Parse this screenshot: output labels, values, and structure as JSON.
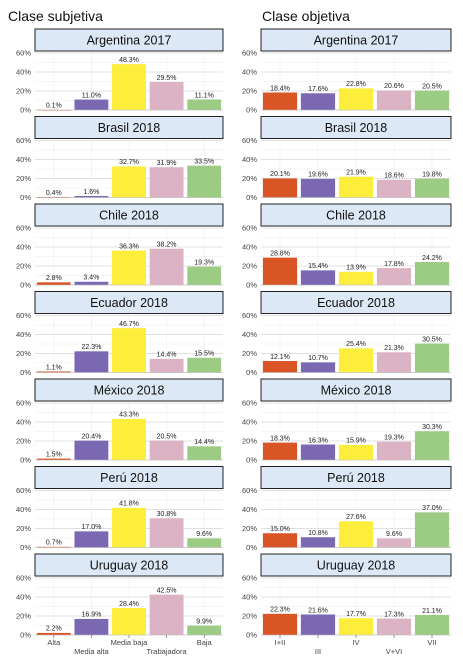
{
  "left_title": "Clase subjetiva",
  "right_title": "Clase objetiva",
  "colors": [
    "#d95525",
    "#7b68b2",
    "#fdee3b",
    "#dcb3c4",
    "#9ccb84"
  ],
  "chart_data": [
    {
      "type": "bar",
      "facet": "Clase subjetiva",
      "categories": [
        "Alta",
        "Media alta",
        "Media baja",
        "Trabajadora",
        "Baja"
      ],
      "ylim": [
        0,
        60
      ],
      "yticks": [
        "0%",
        "20%",
        "40%",
        "60%"
      ],
      "grid": true,
      "panels": [
        {
          "title": "Argentina 2017",
          "values": [
            0.1,
            11.0,
            48.3,
            29.5,
            11.1
          ],
          "labels": [
            "0.1%",
            "11.0%",
            "48.3%",
            "29.5%",
            "11.1%"
          ]
        },
        {
          "title": "Brasil 2018",
          "values": [
            0.4,
            1.6,
            32.7,
            31.9,
            33.5
          ],
          "labels": [
            "0.4%",
            "1.6%",
            "32.7%",
            "31.9%",
            "33.5%"
          ]
        },
        {
          "title": "Chile 2018",
          "values": [
            2.8,
            3.4,
            36.3,
            38.2,
            19.3
          ],
          "labels": [
            "2.8%",
            "3.4%",
            "36.3%",
            "38.2%",
            "19.3%"
          ]
        },
        {
          "title": "Ecuador 2018",
          "values": [
            1.1,
            22.3,
            46.7,
            14.4,
            15.5
          ],
          "labels": [
            "1.1%",
            "22.3%",
            "46.7%",
            "14.4%",
            "15.5%"
          ]
        },
        {
          "title": "México 2018",
          "values": [
            1.5,
            20.4,
            43.3,
            20.5,
            14.4
          ],
          "labels": [
            "1.5%",
            "20.4%",
            "43.3%",
            "20.5%",
            "14.4%"
          ]
        },
        {
          "title": "Perú 2018",
          "values": [
            0.7,
            17.0,
            41.8,
            30.8,
            9.6
          ],
          "labels": [
            "0.7%",
            "17.0%",
            "41.8%",
            "30.8%",
            "9.6%"
          ]
        },
        {
          "title": "Uruguay 2018",
          "values": [
            2.2,
            16.9,
            28.4,
            42.5,
            9.9
          ],
          "labels": [
            "2.2%",
            "16.9%",
            "28.4%",
            "42.5%",
            "9.9%"
          ]
        }
      ]
    },
    {
      "type": "bar",
      "facet": "Clase objetiva",
      "categories": [
        "I+II",
        "III",
        "IV",
        "V+VI",
        "VII"
      ],
      "ylim": [
        0,
        60
      ],
      "yticks": [
        "0%",
        "20%",
        "40%",
        "60%"
      ],
      "grid": true,
      "panels": [
        {
          "title": "Argentina 2017",
          "values": [
            18.4,
            17.6,
            22.8,
            20.6,
            20.5
          ],
          "labels": [
            "18.4%",
            "17.6%",
            "22.8%",
            "20.6%",
            "20.5%"
          ]
        },
        {
          "title": "Brasil 2018",
          "values": [
            20.1,
            19.6,
            21.9,
            18.6,
            19.8
          ],
          "labels": [
            "20.1%",
            "19.6%",
            "21.9%",
            "18.6%",
            "19.8%"
          ]
        },
        {
          "title": "Chile 2018",
          "values": [
            28.8,
            15.4,
            13.9,
            17.8,
            24.2
          ],
          "labels": [
            "28.8%",
            "15.4%",
            "13.9%",
            "17.8%",
            "24.2%"
          ]
        },
        {
          "title": "Ecuador 2018",
          "values": [
            12.1,
            10.7,
            25.4,
            21.3,
            30.5
          ],
          "labels": [
            "12.1%",
            "10.7%",
            "25.4%",
            "21.3%",
            "30.5%"
          ]
        },
        {
          "title": "México 2018",
          "values": [
            18.3,
            16.3,
            15.9,
            19.3,
            30.3
          ],
          "labels": [
            "18.3%",
            "16.3%",
            "15.9%",
            "19.3%",
            "30.3%"
          ]
        },
        {
          "title": "Perú 2018",
          "values": [
            15.0,
            10.8,
            27.6,
            9.6,
            37.0
          ],
          "labels": [
            "15.0%",
            "10.8%",
            "27.6%",
            "9.6%",
            "37.0%"
          ]
        },
        {
          "title": "Uruguay 2018",
          "values": [
            22.3,
            21.6,
            17.7,
            17.3,
            21.1
          ],
          "labels": [
            "22.3%",
            "21.6%",
            "17.7%",
            "17.3%",
            "21.1%"
          ]
        }
      ]
    }
  ]
}
